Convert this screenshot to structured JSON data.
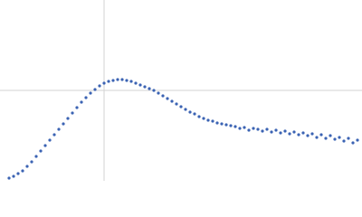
{
  "chart_data": {
    "type": "scatter",
    "color": "#3b63b3",
    "grid": true,
    "xlim": [
      0,
      4
    ],
    "ylim": [
      0,
      2
    ],
    "xticks": [
      1.15
    ],
    "yticks": [
      1.0
    ],
    "series": [
      {
        "color": "#3b63b3",
        "x": [
          0.1,
          0.15,
          0.2,
          0.25,
          0.3,
          0.35,
          0.4,
          0.45,
          0.5,
          0.55,
          0.6,
          0.65,
          0.7,
          0.75,
          0.8,
          0.85,
          0.9,
          0.95,
          1.0,
          1.05,
          1.1,
          1.15,
          1.2,
          1.25,
          1.3,
          1.35,
          1.4,
          1.45,
          1.5,
          1.55,
          1.6,
          1.65,
          1.7,
          1.75,
          1.8,
          1.85,
          1.9,
          1.95,
          2.0,
          2.05,
          2.1,
          2.15,
          2.2,
          2.25,
          2.3,
          2.35,
          2.4,
          2.45,
          2.5,
          2.55,
          2.6,
          2.65,
          2.7,
          2.75,
          2.8,
          2.85,
          2.9,
          2.95,
          3.0,
          3.05,
          3.1,
          3.15,
          3.2,
          3.25,
          3.3,
          3.35,
          3.4,
          3.45,
          3.5,
          3.55,
          3.6,
          3.65,
          3.7,
          3.75,
          3.8,
          3.85,
          3.9,
          3.95
        ],
        "values": [
          0.03,
          0.05,
          0.08,
          0.11,
          0.16,
          0.21,
          0.27,
          0.33,
          0.39,
          0.45,
          0.51,
          0.57,
          0.63,
          0.69,
          0.75,
          0.81,
          0.87,
          0.92,
          0.97,
          1.01,
          1.05,
          1.08,
          1.1,
          1.11,
          1.12,
          1.12,
          1.11,
          1.1,
          1.08,
          1.06,
          1.04,
          1.02,
          1.0,
          0.97,
          0.94,
          0.91,
          0.88,
          0.85,
          0.82,
          0.79,
          0.76,
          0.74,
          0.71,
          0.69,
          0.67,
          0.66,
          0.64,
          0.63,
          0.62,
          0.61,
          0.6,
          0.58,
          0.59,
          0.56,
          0.58,
          0.57,
          0.55,
          0.57,
          0.54,
          0.56,
          0.53,
          0.55,
          0.52,
          0.54,
          0.51,
          0.53,
          0.5,
          0.52,
          0.48,
          0.51,
          0.47,
          0.5,
          0.46,
          0.48,
          0.44,
          0.47,
          0.42,
          0.45
        ]
      }
    ]
  }
}
